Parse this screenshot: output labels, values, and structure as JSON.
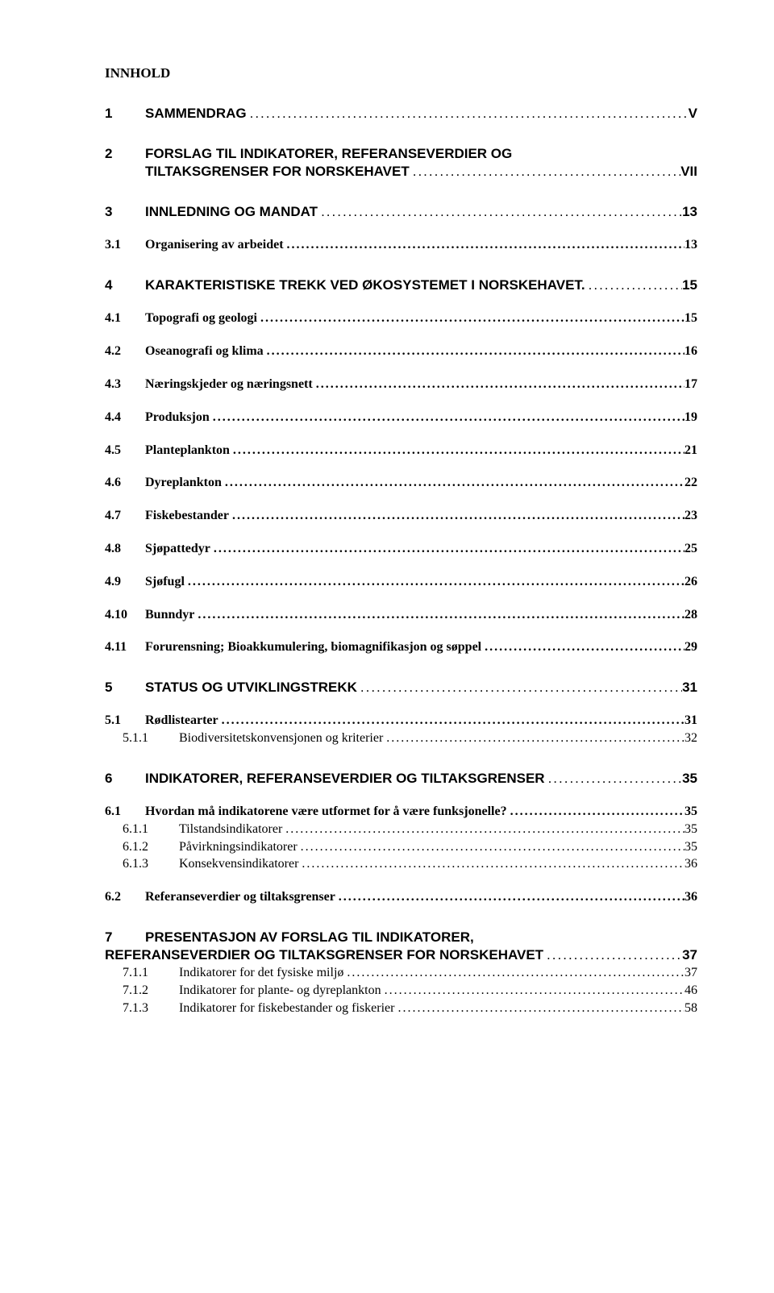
{
  "page_title": "INNHOLD",
  "toc": [
    {
      "lvl": 1,
      "num": "1",
      "label": "SAMMENDRAG",
      "page": "V"
    },
    {
      "lvl": 1,
      "num": "2",
      "label_line1": "FORSLAG TIL INDIKATORER, REFERANSEVERDIER OG",
      "label_line2": "TILTAKSGRENSER FOR NORSKEHAVET",
      "page": "VII"
    },
    {
      "lvl": 1,
      "num": "3",
      "label": "INNLEDNING OG MANDAT",
      "page": "13"
    },
    {
      "lvl": 2,
      "num": "3.1",
      "label": "Organisering av arbeidet",
      "page": "13"
    },
    {
      "lvl": 1,
      "num": "4",
      "label": "KARAKTERISTISKE TREKK VED ØKOSYSTEMET I NORSKEHAVET.",
      "page": "15"
    },
    {
      "lvl": 2,
      "num": "4.1",
      "label": "Topografi og geologi",
      "page": "15"
    },
    {
      "lvl": 2,
      "num": "4.2",
      "label": "Oseanografi og klima",
      "page": "16"
    },
    {
      "lvl": 2,
      "num": "4.3",
      "label": "Næringskjeder og næringsnett",
      "page": "17"
    },
    {
      "lvl": 2,
      "num": "4.4",
      "label": "Produksjon",
      "page": "19"
    },
    {
      "lvl": 2,
      "num": "4.5",
      "label": "Planteplankton",
      "page": "21"
    },
    {
      "lvl": 2,
      "num": "4.6",
      "label": "Dyreplankton",
      "page": "22"
    },
    {
      "lvl": 2,
      "num": "4.7",
      "label": "Fiskebestander",
      "page": "23"
    },
    {
      "lvl": 2,
      "num": "4.8",
      "label": "Sjøpattedyr",
      "page": "25"
    },
    {
      "lvl": 2,
      "num": "4.9",
      "label": "Sjøfugl",
      "page": "26"
    },
    {
      "lvl": 2,
      "num": "4.10",
      "label": "Bunndyr",
      "page": "28"
    },
    {
      "lvl": 2,
      "num": "4.11",
      "label": "Forurensning; Bioakkumulering, biomagnifikasjon og søppel",
      "page": "29"
    },
    {
      "lvl": 1,
      "num": "5",
      "label": "STATUS OG UTVIKLINGSTREKK",
      "page": "31"
    },
    {
      "lvl": 2,
      "num": "5.1",
      "label": "Rødlistearter",
      "page": "31"
    },
    {
      "lvl": 3,
      "num": "5.1.1",
      "label": "Biodiversitetskonvensjonen og kriterier",
      "page": "32"
    },
    {
      "lvl": 1,
      "num": "6",
      "label": "INDIKATORER, REFERANSEVERDIER OG TILTAKSGRENSER",
      "page": "35"
    },
    {
      "lvl": 2,
      "num": "6.1",
      "label": "Hvordan må indikatorene være utformet for å være funksjonelle?",
      "page": "35"
    },
    {
      "lvl": 3,
      "num": "6.1.1",
      "label": "Tilstandsindikatorer",
      "page": "35"
    },
    {
      "lvl": 3,
      "num": "6.1.2",
      "label": "Påvirkningsindikatorer",
      "page": "35"
    },
    {
      "lvl": 3,
      "num": "6.1.3",
      "label": "Konsekvensindikatorer",
      "page": "36"
    },
    {
      "lvl": 2,
      "num": "6.2",
      "label": "Referanseverdier og tiltaksgrenser",
      "page": "36"
    },
    {
      "lvl": 1,
      "num": "7",
      "label_line1": "PRESENTASJON AV FORSLAG TIL INDIKATORER,",
      "label_line2_prefix": "REFERANSEVERDIER OG TILTAKSGRENSER FOR NORSKEHAVET",
      "page": "37",
      "flush_line2": true
    },
    {
      "lvl": 3,
      "num": "7.1.1",
      "label": "Indikatorer for det fysiske miljø",
      "page": "37"
    },
    {
      "lvl": 3,
      "num": "7.1.2",
      "label": "Indikatorer for plante- og dyreplankton",
      "page": "46"
    },
    {
      "lvl": 3,
      "num": "7.1.3",
      "label": "Indikatorer for fiskebestander og fiskerier",
      "page": "58"
    }
  ]
}
